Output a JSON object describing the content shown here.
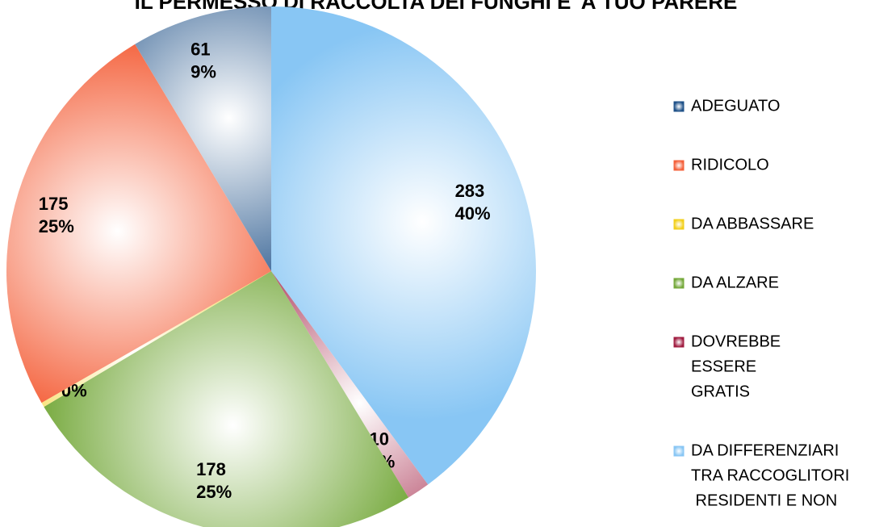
{
  "chart_data": {
    "type": "pie",
    "title": "IL PERMESSO DI RACCOLTA DEI FUNGHI E' A TUO PARERE",
    "categories": [
      [
        "ADEGUATO"
      ],
      [
        "RIDICOLO"
      ],
      [
        "DA ABBASSARE"
      ],
      [
        "DA ALZARE"
      ],
      [
        "DOVREBBE",
        "ESSERE",
        "GRATIS"
      ],
      [
        "DA DIFFERENZIARI",
        "TRA RACCOGLITORI",
        " RESIDENTI E NON"
      ]
    ],
    "values": [
      61,
      175,
      2,
      178,
      10,
      283
    ],
    "percent_labels": [
      "9%",
      "25%",
      "0%",
      "25%",
      "1%",
      "40%"
    ],
    "colors": [
      "#1f5188",
      "#f4603a",
      "#f2cf1a",
      "#74a83a",
      "#a01c40",
      "#88c6f4"
    ],
    "legend": "right"
  }
}
